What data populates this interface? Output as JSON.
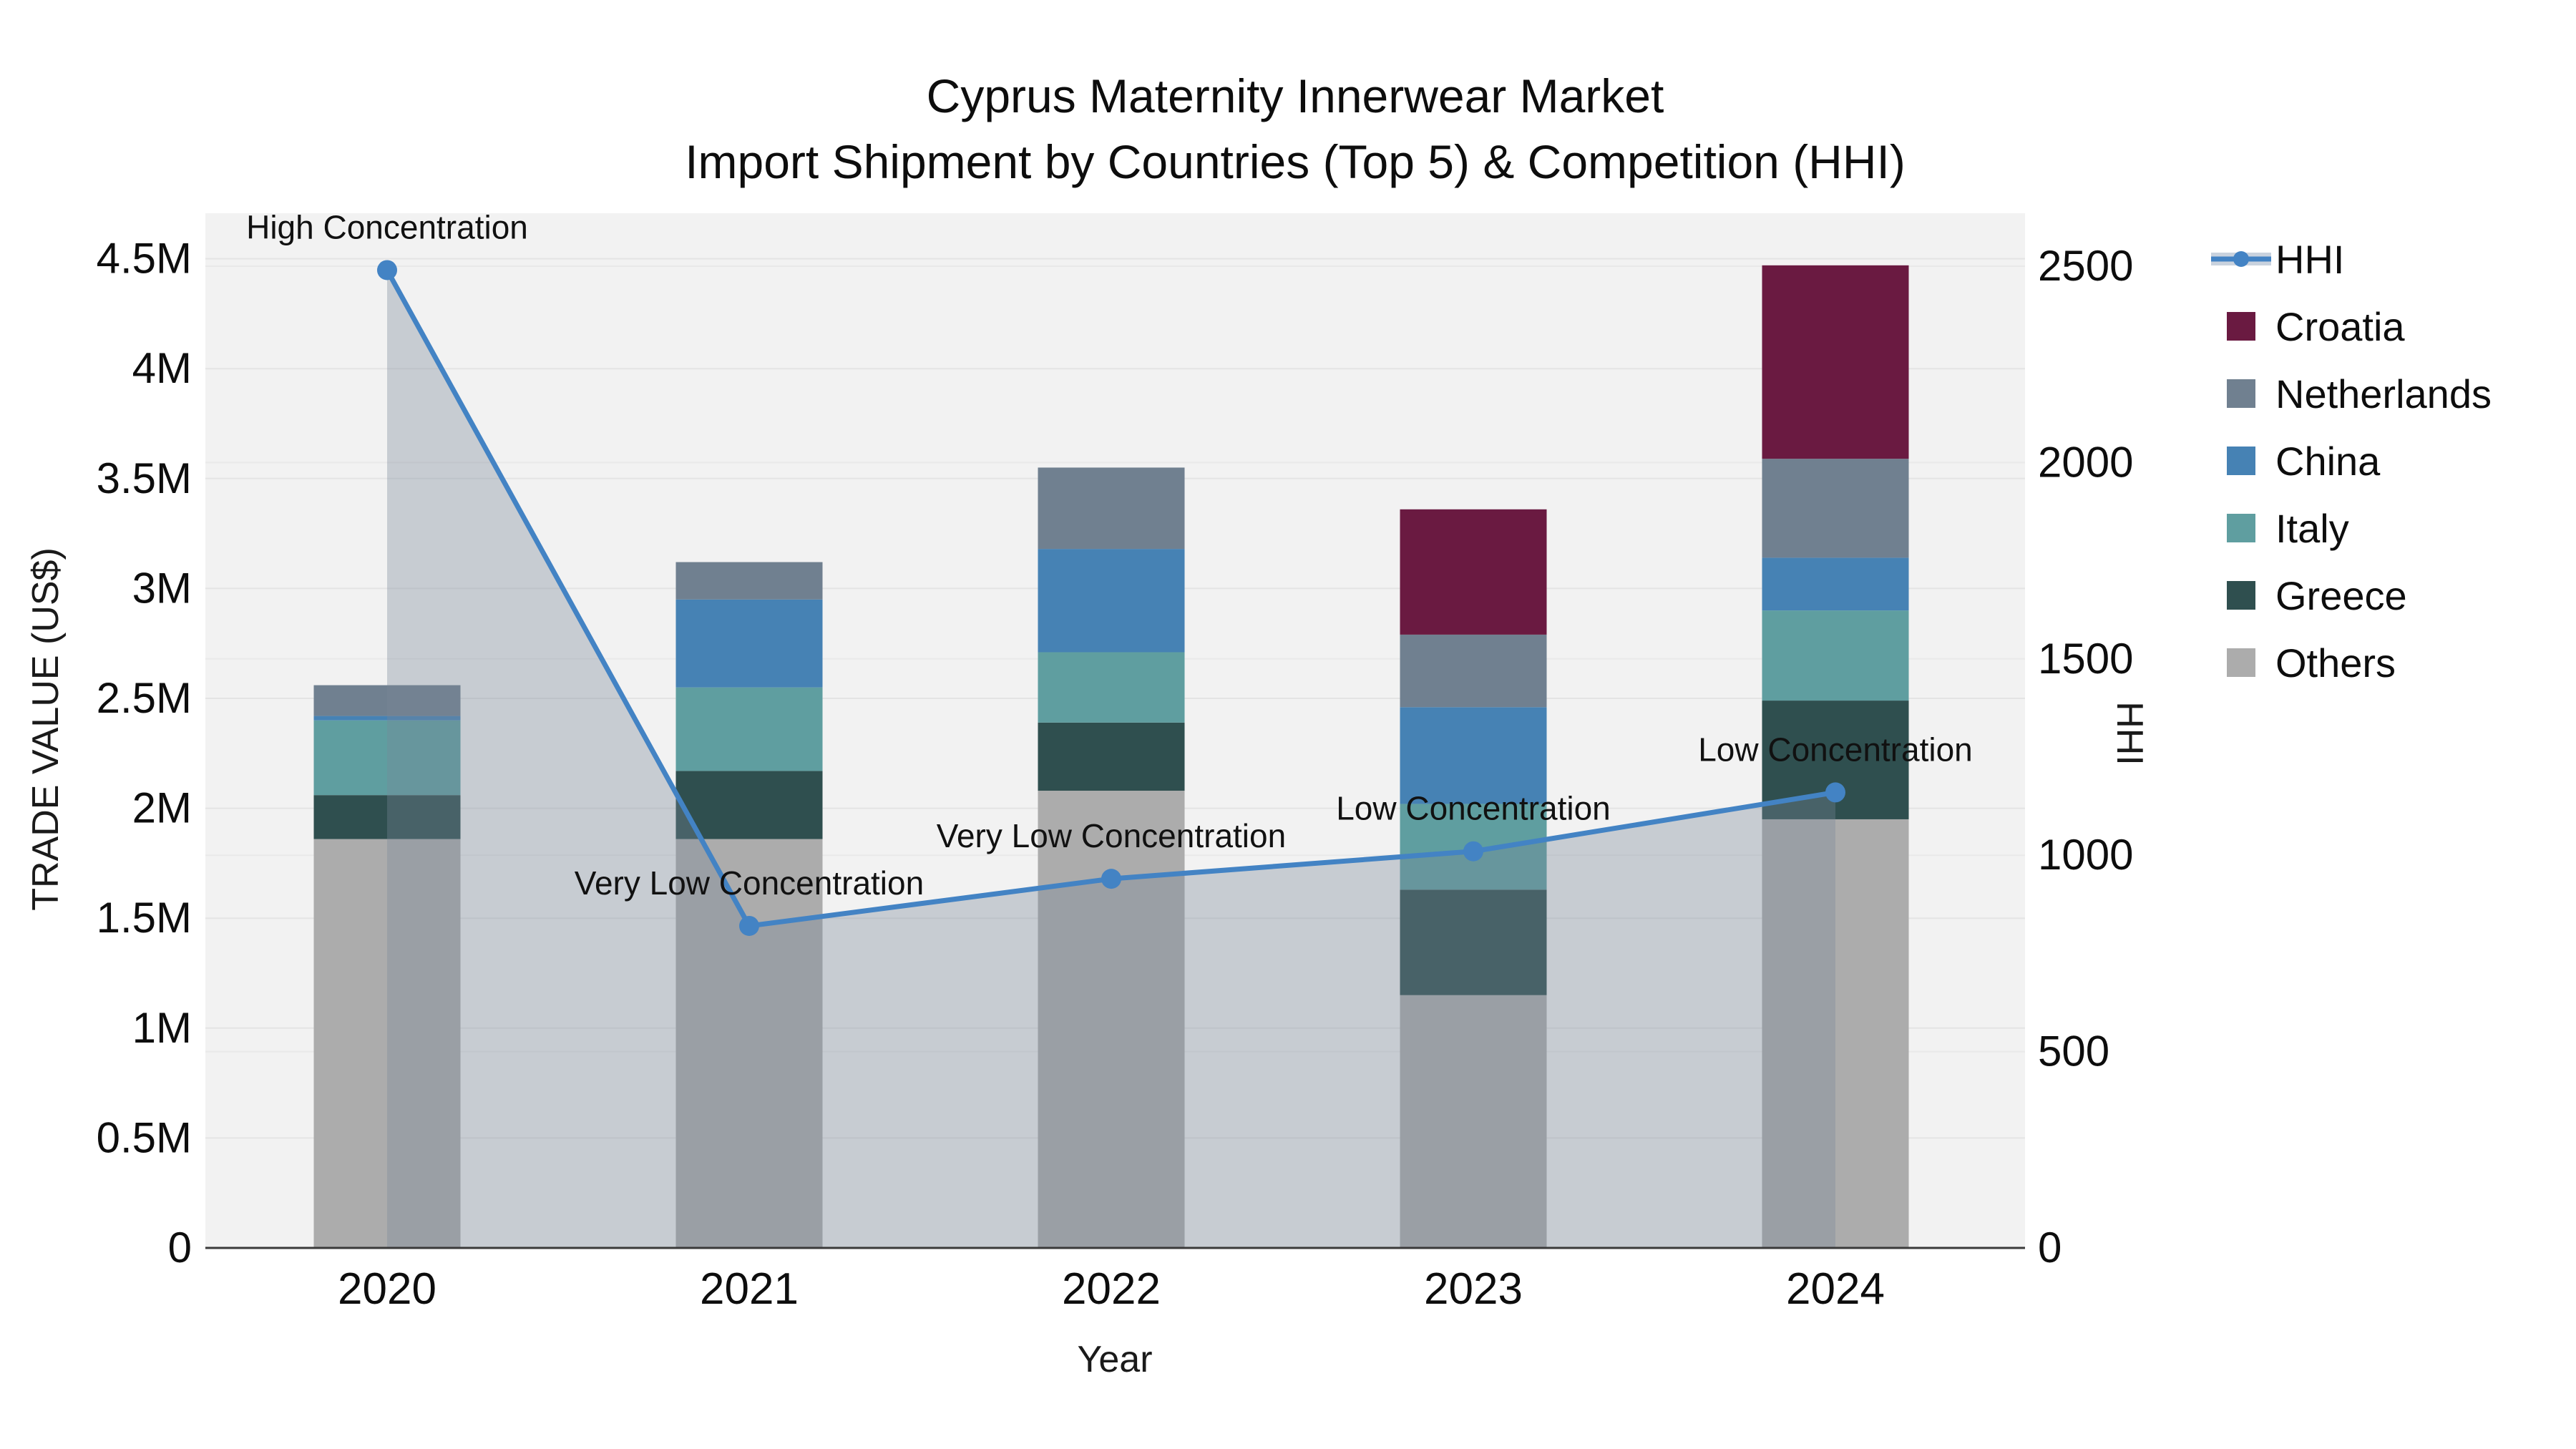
{
  "title": {
    "line1": "Cyprus Maternity Innerwear Market",
    "line2": "Import Shipment by Countries (Top 5) & Competition (HHI)"
  },
  "axes": {
    "left_title": "TRADE VALUE (US$)",
    "right_title": "HHI",
    "x_title": "Year",
    "left_ticks": [
      "0",
      "0.5M",
      "1M",
      "1.5M",
      "2M",
      "2.5M",
      "3M",
      "3.5M",
      "4M",
      "4.5M"
    ],
    "right_ticks": [
      "0",
      "500",
      "1000",
      "1500",
      "2000",
      "2500"
    ]
  },
  "legend": {
    "items": [
      {
        "label": "HHI",
        "kind": "line",
        "color": "#4383C4",
        "band_color": "#C9D2DE"
      },
      {
        "label": "Croatia",
        "kind": "box",
        "color": "#6A1A41"
      },
      {
        "label": "Netherlands",
        "kind": "box",
        "color": "#708090"
      },
      {
        "label": "China",
        "kind": "box",
        "color": "#4682B4"
      },
      {
        "label": "Italy",
        "kind": "box",
        "color": "#5F9EA0"
      },
      {
        "label": "Greece",
        "kind": "box",
        "color": "#2F4F4F"
      },
      {
        "label": "Others",
        "kind": "box",
        "color": "#ACACAC"
      }
    ]
  },
  "chart_data": {
    "type": "bar",
    "subtype": "stacked-bars-with-line",
    "title": "Cyprus Maternity Innerwear Market — Import Shipment by Countries (Top 5) & Competition (HHI)",
    "categories": [
      "2020",
      "2021",
      "2022",
      "2023",
      "2024"
    ],
    "value_unit": "US$ millions",
    "series": [
      {
        "name": "Others",
        "color": "#ACACAC",
        "values": [
          1.86,
          1.86,
          2.08,
          1.15,
          1.95
        ]
      },
      {
        "name": "Greece",
        "color": "#2F4F4F",
        "values": [
          0.2,
          0.31,
          0.31,
          0.48,
          0.54
        ]
      },
      {
        "name": "Italy",
        "color": "#5F9EA0",
        "values": [
          0.34,
          0.38,
          0.32,
          0.39,
          0.41
        ]
      },
      {
        "name": "China",
        "color": "#4682B4",
        "values": [
          0.02,
          0.4,
          0.47,
          0.44,
          0.24
        ]
      },
      {
        "name": "Netherlands",
        "color": "#708090",
        "values": [
          0.14,
          0.17,
          0.37,
          0.33,
          0.45
        ]
      },
      {
        "name": "Croatia",
        "color": "#6A1A41",
        "values": [
          0.0,
          0.0,
          0.0,
          0.57,
          0.88
        ]
      }
    ],
    "bar_totals": [
      2.56,
      3.12,
      3.55,
      3.36,
      4.47
    ],
    "line_series": {
      "name": "HHI",
      "axis": "right",
      "color": "#4383C4",
      "fill_color": "rgba(119,136,153,0.35)",
      "values": [
        2490,
        820,
        940,
        1010,
        1160
      ]
    },
    "annotations": [
      "High Concentration",
      "Very Low Concentration",
      "Very Low Concentration",
      "Low Concentration",
      "Low Concentration"
    ],
    "xlabel": "Year",
    "ylabel_left": "TRADE VALUE (US$)",
    "ylabel_right": "HHI",
    "ylim_left": [
      0,
      4.71
    ],
    "ylim_right": [
      0,
      2635
    ],
    "grid": true,
    "legend_position": "right"
  }
}
